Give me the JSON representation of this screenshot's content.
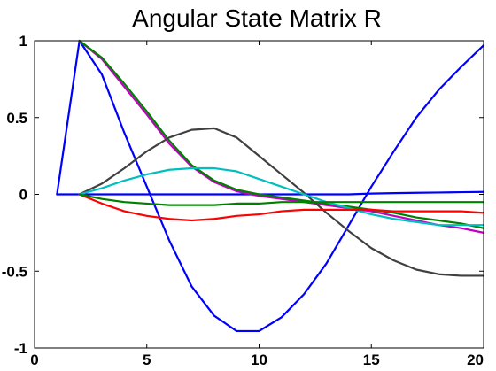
{
  "chart_data": {
    "type": "line",
    "title": "Angular State Matrix R",
    "xlabel": "",
    "ylabel": "",
    "xlim": [
      0,
      20
    ],
    "ylim": [
      -1,
      1
    ],
    "xticks": [
      "0",
      "5",
      "10",
      "15",
      "20"
    ],
    "yticks": [
      "1",
      "0.5",
      "0",
      "-0.5",
      "-1"
    ],
    "grid": false,
    "x": [
      1,
      2,
      3,
      4,
      5,
      6,
      7,
      8,
      9,
      10,
      11,
      12,
      13,
      14,
      15,
      16,
      17,
      18,
      19,
      20
    ],
    "series": [
      {
        "color": "#0000ff",
        "values": [
          0,
          1.0,
          0.78,
          0.4,
          0.05,
          -0.3,
          -0.6,
          -0.79,
          -0.89,
          -0.89,
          -0.8,
          -0.65,
          -0.45,
          -0.2,
          0.05,
          0.28,
          0.5,
          0.68,
          0.83,
          0.97
        ]
      },
      {
        "color": "#0000ff",
        "values": [
          0,
          0,
          0,
          0,
          0,
          0,
          0,
          0,
          0,
          0,
          0,
          0,
          0,
          0,
          0.005,
          0.008,
          0.01,
          0.012,
          0.014,
          0.016
        ]
      },
      {
        "color": "#bf00bf",
        "values": [
          null,
          1.0,
          0.88,
          0.7,
          0.52,
          0.33,
          0.18,
          0.08,
          0.02,
          -0.01,
          -0.03,
          -0.05,
          -0.07,
          -0.09,
          -0.11,
          -0.14,
          -0.17,
          -0.2,
          -0.22,
          -0.25
        ]
      },
      {
        "color": "#008000",
        "values": [
          null,
          1.0,
          0.89,
          0.72,
          0.54,
          0.35,
          0.19,
          0.09,
          0.03,
          0,
          -0.02,
          -0.04,
          -0.06,
          -0.08,
          -0.1,
          -0.12,
          -0.15,
          -0.17,
          -0.19,
          -0.22
        ]
      },
      {
        "color": "#404040",
        "values": [
          null,
          0,
          0.07,
          0.17,
          0.28,
          0.37,
          0.42,
          0.43,
          0.37,
          0.25,
          0.13,
          0.01,
          -0.12,
          -0.24,
          -0.35,
          -0.43,
          -0.49,
          -0.52,
          -0.53,
          -0.53
        ]
      },
      {
        "color": "#00bfbf",
        "values": [
          null,
          0,
          0.04,
          0.09,
          0.13,
          0.16,
          0.17,
          0.17,
          0.15,
          0.1,
          0.05,
          0,
          -0.05,
          -0.09,
          -0.13,
          -0.16,
          -0.18,
          -0.2,
          -0.2,
          -0.2
        ]
      },
      {
        "color": "#ff0000",
        "values": [
          null,
          0,
          -0.06,
          -0.11,
          -0.14,
          -0.16,
          -0.17,
          -0.16,
          -0.14,
          -0.13,
          -0.11,
          -0.1,
          -0.1,
          -0.1,
          -0.1,
          -0.11,
          -0.11,
          -0.11,
          -0.11,
          -0.12
        ]
      },
      {
        "color": "#008000",
        "values": [
          null,
          0,
          -0.03,
          -0.05,
          -0.06,
          -0.07,
          -0.07,
          -0.07,
          -0.06,
          -0.06,
          -0.05,
          -0.05,
          -0.05,
          -0.05,
          -0.05,
          -0.05,
          -0.05,
          -0.05,
          -0.05,
          -0.05
        ]
      }
    ]
  }
}
